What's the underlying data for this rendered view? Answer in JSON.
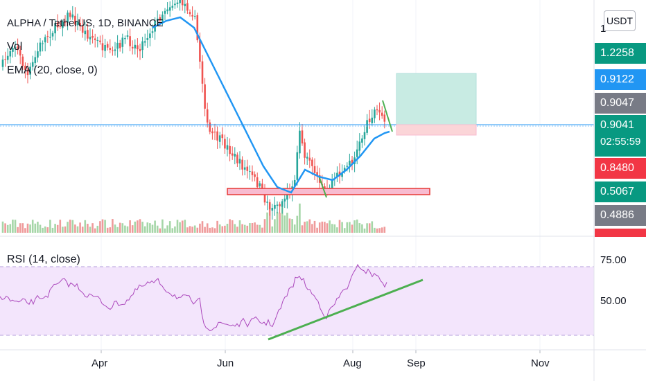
{
  "legend": {
    "symbol": "ALPHA / TetherUS, 1D, BINANCE",
    "volume": "Vol",
    "ema": "EMA (20, close, 0)",
    "rsi": "RSI (14, close)"
  },
  "currency_button": "USDT",
  "price_scale_partial_label": "1",
  "price_tags": [
    {
      "value": "1.2258",
      "color": "#089981"
    },
    {
      "value": "0.9122",
      "color": "#2196f3"
    },
    {
      "value": "0.9047",
      "color": "#787b86"
    },
    {
      "value": "0.9041",
      "color": "#089981",
      "countdown": "02:55:59"
    },
    {
      "value": "0.8480",
      "color": "#f23645"
    },
    {
      "value": "0.5067",
      "color": "#089981"
    },
    {
      "value": "0.4886",
      "color": "#787b86"
    }
  ],
  "rsi_scale": [
    "75.00",
    "50.00"
  ],
  "time_axis": [
    "Apr",
    "Jun",
    "Aug",
    "Sep",
    "Nov"
  ],
  "colors": {
    "up": "#26a69a",
    "down": "#ef5350",
    "ema": "#2196f3",
    "rsi_line": "#ab47bc",
    "rsi_band": "#f3e5fc",
    "trendline": "#4caf50",
    "support_zone": "#f8bbd0",
    "target_zone": "#c8ebe3",
    "stop_zone": "#fbd5d8",
    "current_price_line": "#2196f3"
  }
}
